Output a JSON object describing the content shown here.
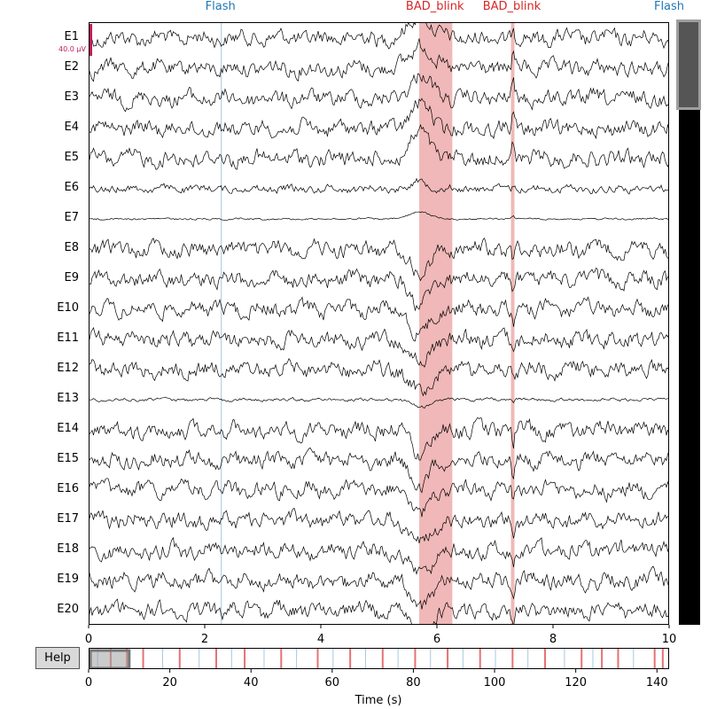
{
  "channels": [
    "E1",
    "E2",
    "E3",
    "E4",
    "E5",
    "E6",
    "E7",
    "E8",
    "E9",
    "E10",
    "E11",
    "E12",
    "E13",
    "E14",
    "E15",
    "E16",
    "E17",
    "E18",
    "E19",
    "E20"
  ],
  "scale_bar": {
    "label": "40.0 µV",
    "color": "#c2185b"
  },
  "x_axis": {
    "ticks": [
      "0",
      "2",
      "4",
      "6",
      "8",
      "10"
    ],
    "range": [
      0,
      10
    ]
  },
  "annotations": [
    {
      "label": "Flash",
      "onset": 2.27,
      "duration": 0,
      "color": "#1f77b4"
    },
    {
      "label": "BAD_blink",
      "onset": 5.68,
      "duration": 0.57,
      "color": "#d62728"
    },
    {
      "label": "BAD_blink",
      "onset": 7.26,
      "duration": 0.06,
      "color": "#d62728"
    },
    {
      "label": "Flash",
      "onset": 10.0,
      "duration": 0,
      "color": "#1f77b4"
    }
  ],
  "colors": {
    "bad_fill": "#f0b8b8",
    "flash_line": "#a6c8e0",
    "trace": "#000000",
    "scrollbar": "#000000"
  },
  "help_button": {
    "label": "Help"
  },
  "overview": {
    "ticks": [
      "0",
      "20",
      "40",
      "60",
      "80",
      "100",
      "120",
      "140"
    ],
    "range": [
      0,
      143
    ],
    "window": [
      0,
      10
    ],
    "bad_marks": [
      5,
      9,
      13,
      22,
      31,
      38,
      47,
      56,
      64,
      72,
      80,
      88,
      96,
      104,
      112,
      121,
      126,
      130,
      139,
      141
    ],
    "flash_marks": [
      2,
      18,
      27,
      35,
      43,
      51,
      60,
      68,
      76,
      84,
      92,
      100,
      108,
      117,
      124,
      134
    ]
  },
  "time_axis_label": "Time (s)",
  "vertical_scrollbar": {
    "position": 0,
    "visible_fraction": 0.15
  }
}
